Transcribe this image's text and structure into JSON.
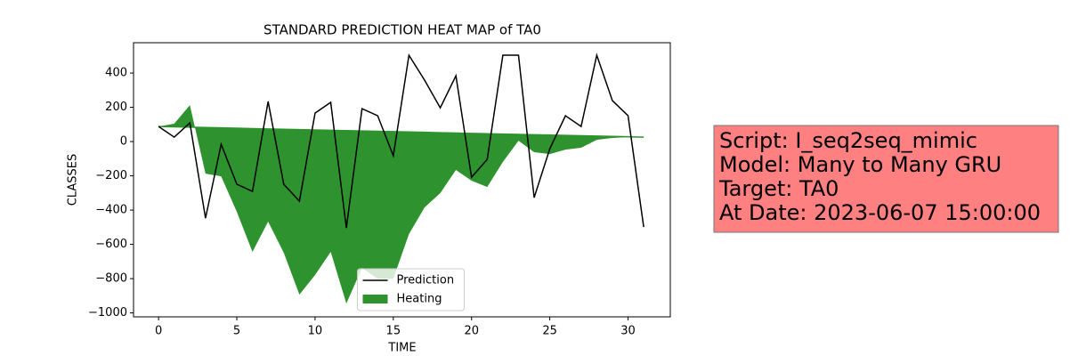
{
  "chart_data": {
    "type": "line",
    "title": "STANDARD PREDICTION HEAT MAP of TA0",
    "x_label": "TIME",
    "y_label": "CLASSES",
    "x": [
      0,
      1,
      2,
      3,
      4,
      5,
      6,
      7,
      8,
      9,
      10,
      11,
      12,
      13,
      14,
      15,
      16,
      17,
      18,
      19,
      20,
      21,
      22,
      23,
      24,
      25,
      26,
      27,
      28,
      29,
      30,
      31
    ],
    "series": [
      {
        "name": "Prediction",
        "color": "#000000",
        "kind": "line",
        "values": [
          88,
          26,
          109,
          -447,
          -16,
          -249,
          -291,
          234,
          -249,
          -348,
          166,
          229,
          -504,
          192,
          151,
          -83,
          504,
          358,
          197,
          384,
          -208,
          -104,
          504,
          504,
          -327,
          -42,
          151,
          88,
          504,
          239,
          151,
          -499
        ]
      },
      {
        "name": "Heating",
        "color": "#2e932e",
        "kind": "area",
        "values": [
          88,
          104,
          213,
          -187,
          -203,
          -410,
          -644,
          -467,
          -649,
          -893,
          -779,
          -644,
          -945,
          -737,
          -800,
          -800,
          -540,
          -384,
          -301,
          -166,
          -228,
          -265,
          -119,
          5,
          -62,
          -73,
          -47,
          -36,
          10,
          21,
          26,
          28
        ],
        "base": [
          88,
          86,
          84,
          82,
          80,
          78,
          76,
          74,
          72,
          70,
          68,
          66,
          64,
          62,
          60,
          58,
          56,
          54,
          52,
          50,
          48,
          46,
          44,
          42,
          40,
          38,
          36,
          34,
          32,
          30,
          28,
          26
        ]
      }
    ],
    "xlim": [
      -1.6,
      32.7
    ],
    "ylim": [
      -1023,
      577
    ],
    "xticks": [
      0,
      5,
      10,
      15,
      20,
      25,
      30
    ],
    "yticks": [
      {
        "value": -1000,
        "label": "−1000"
      },
      {
        "value": -800,
        "label": "−800"
      },
      {
        "value": -600,
        "label": "−600"
      },
      {
        "value": -400,
        "label": "−400"
      },
      {
        "value": -200,
        "label": "−200"
      },
      0,
      200,
      400
    ],
    "legend": "lower center",
    "annotation": [
      "Script: I_seq2seq_mimic",
      "Model: Many to Many GRU",
      "Target: TA0",
      "At Date: 2023-06-07 15:00:00"
    ]
  }
}
